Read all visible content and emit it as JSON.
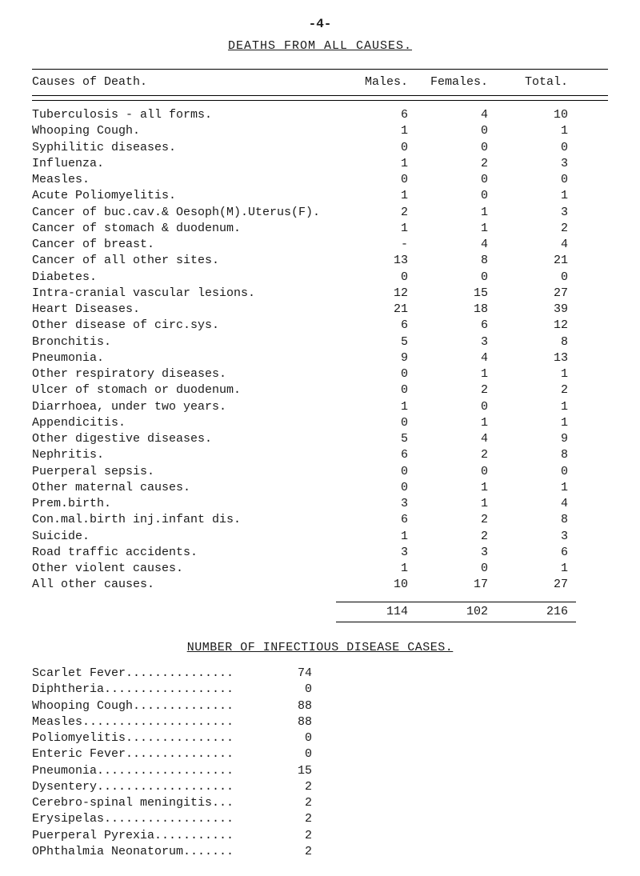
{
  "page_number": "-4-",
  "title": "DEATHS FROM ALL CAUSES.",
  "columns": {
    "cause": "Causes of Death.",
    "males": "Males.",
    "females": "Females.",
    "total": "Total."
  },
  "rows": [
    {
      "cause": "Tuberculosis - all forms.",
      "m": "6",
      "f": "4",
      "t": "10"
    },
    {
      "cause": "Whooping Cough.",
      "m": "1",
      "f": "0",
      "t": "1"
    },
    {
      "cause": "Syphilitic diseases.",
      "m": "0",
      "f": "0",
      "t": "0"
    },
    {
      "cause": "Influenza.",
      "m": "1",
      "f": "2",
      "t": "3"
    },
    {
      "cause": "Measles.",
      "m": "0",
      "f": "0",
      "t": "0"
    },
    {
      "cause": "Acute Poliomyelitis.",
      "m": "1",
      "f": "0",
      "t": "1"
    },
    {
      "cause": "Cancer of buc.cav.& Oesoph(M).Uterus(F).",
      "m": "2",
      "f": "1",
      "t": "3"
    },
    {
      "cause": "Cancer of stomach & duodenum.",
      "m": "1",
      "f": "1",
      "t": "2"
    },
    {
      "cause": "Cancer of breast.",
      "m": "-",
      "f": "4",
      "t": "4"
    },
    {
      "cause": "Cancer of all other sites.",
      "m": "13",
      "f": "8",
      "t": "21"
    },
    {
      "cause": "Diabetes.",
      "m": "0",
      "f": "0",
      "t": "0"
    },
    {
      "cause": "Intra-cranial vascular lesions.",
      "m": "12",
      "f": "15",
      "t": "27"
    },
    {
      "cause": "Heart Diseases.",
      "m": "21",
      "f": "18",
      "t": "39"
    },
    {
      "cause": "Other disease of circ.sys.",
      "m": "6",
      "f": "6",
      "t": "12"
    },
    {
      "cause": "Bronchitis.",
      "m": "5",
      "f": "3",
      "t": "8"
    },
    {
      "cause": "Pneumonia.",
      "m": "9",
      "f": "4",
      "t": "13"
    },
    {
      "cause": "Other respiratory diseases.",
      "m": "0",
      "f": "1",
      "t": "1"
    },
    {
      "cause": "Ulcer of stomach or duodenum.",
      "m": "0",
      "f": "2",
      "t": "2"
    },
    {
      "cause": "Diarrhoea, under two years.",
      "m": "1",
      "f": "0",
      "t": "1"
    },
    {
      "cause": "Appendicitis.",
      "m": "0",
      "f": "1",
      "t": "1"
    },
    {
      "cause": "Other digestive diseases.",
      "m": "5",
      "f": "4",
      "t": "9"
    },
    {
      "cause": "Nephritis.",
      "m": "6",
      "f": "2",
      "t": "8"
    },
    {
      "cause": "Puerperal sepsis.",
      "m": "0",
      "f": "0",
      "t": "0"
    },
    {
      "cause": "Other maternal causes.",
      "m": "0",
      "f": "1",
      "t": "1"
    },
    {
      "cause": "Prem.birth.",
      "m": "3",
      "f": "1",
      "t": "4"
    },
    {
      "cause": "Con.mal.birth inj.infant dis.",
      "m": "6",
      "f": "2",
      "t": "8"
    },
    {
      "cause": "Suicide.",
      "m": "1",
      "f": "2",
      "t": "3"
    },
    {
      "cause": "Road traffic accidents.",
      "m": "3",
      "f": "3",
      "t": "6"
    },
    {
      "cause": "Other violent causes.",
      "m": "1",
      "f": "0",
      "t": "1"
    },
    {
      "cause": "All other causes.",
      "m": "10",
      "f": "17",
      "t": "27"
    }
  ],
  "totals": {
    "m": "114",
    "f": "102",
    "t": "216"
  },
  "section2_title": "NUMBER OF INFECTIOUS DISEASE CASES.",
  "infectious": [
    {
      "label": "Scarlet Fever",
      "val": "74"
    },
    {
      "label": "Diphtheria",
      "val": "0"
    },
    {
      "label": "Whooping Cough",
      "val": "88"
    },
    {
      "label": "Measles",
      "val": "88"
    },
    {
      "label": "Poliomyelitis",
      "val": "0"
    },
    {
      "label": "Enteric Fever",
      "val": "0"
    },
    {
      "label": "Pneumonia",
      "val": "15"
    },
    {
      "label": "Dysentery",
      "val": "2"
    },
    {
      "label": "Cerebro-spinal meningitis",
      "val": "2"
    },
    {
      "label": "Erysipelas",
      "val": "2"
    },
    {
      "label": "Puerperal Pyrexia",
      "val": "2"
    },
    {
      "label": "OPhthalmia Neonatorum",
      "val": "2"
    }
  ]
}
